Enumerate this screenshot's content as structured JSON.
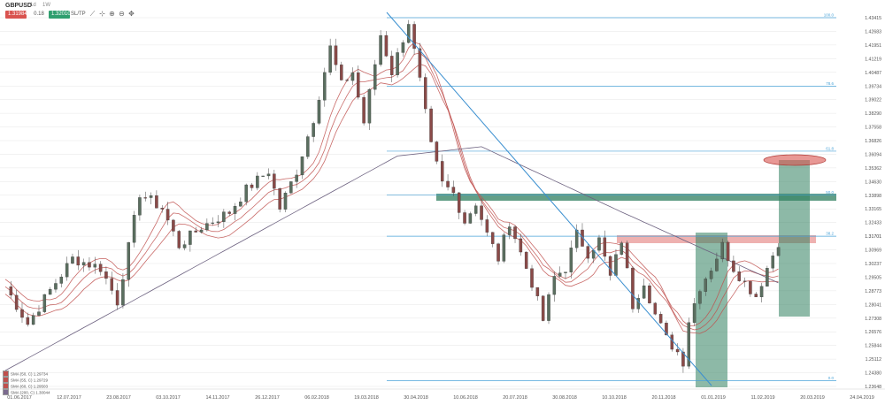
{
  "toolbar": {
    "symbol": "GBPUSD",
    "interval_1": "1d",
    "interval_2": "1W",
    "sell_price": "1.31984",
    "spread": "0.18",
    "buy_price": "1.32010",
    "sl_tp": "SL/TP",
    "icons": [
      "line-tool-icon",
      "crosshair-icon",
      "zoom-in-icon",
      "zoom-out-icon",
      "move-icon"
    ]
  },
  "legend": [
    {
      "label": "SMA (50, C) 1.29734",
      "color": "#c0504d"
    },
    {
      "label": "SMA (55, C) 1.29729",
      "color": "#c0504d"
    },
    {
      "label": "SMA (60, C) 1.29503",
      "color": "#c0504d"
    },
    {
      "label": "SMA (200, C) 1.30044",
      "color": "#7b6a8e"
    }
  ],
  "colors": {
    "bull": "#2f9f6f",
    "bear": "#c0504d",
    "sma_short": "#c0504d",
    "sma_long": "#6d6280",
    "fib": "#4aa3d8",
    "trendline": "#3a8fd0",
    "zone_green": "#2f7f5f",
    "zone_red": "#d9534f",
    "axis_text": "#555555",
    "grid": "#e6e6e6"
  },
  "chart_data": {
    "type": "candlestick",
    "y_ticks": [
      "1.43415",
      "1.42683",
      "1.41951",
      "1.41219",
      "1.40487",
      "1.39734",
      "1.39022",
      "1.38290",
      "1.37558",
      "1.36826",
      "1.36094",
      "1.35362",
      "1.34630",
      "1.33898",
      "1.33165",
      "1.32433",
      "1.31701",
      "1.30969",
      "1.30237",
      "1.29505",
      "1.28773",
      "1.28041",
      "1.27308",
      "1.26576",
      "1.25844",
      "1.25112",
      "1.24380",
      "1.23648"
    ],
    "x_ticks": [
      "01.06.2017",
      "12.07.2017",
      "23.08.2017",
      "03.10.2017",
      "14.11.2017",
      "26.12.2017",
      "06.02.2018",
      "19.03.2018",
      "30.04.2018",
      "10.06.2018",
      "20.07.2018",
      "30.08.2018",
      "10.10.2018",
      "20.11.2018",
      "01.01.2019",
      "11.02.2019",
      "20.03.2019",
      "24.04.2019"
    ],
    "ylim": [
      1.236,
      1.437
    ],
    "fib_levels": [
      {
        "label": "100.0",
        "value": 1.43415
      },
      {
        "label": "78.6",
        "value": 1.39734
      },
      {
        "label": "61.8",
        "value": 1.3626
      },
      {
        "label": "50.0",
        "value": 1.3392
      },
      {
        "label": "38.2",
        "value": 1.31701
      },
      {
        "label": "0.0",
        "value": 1.2396
      }
    ],
    "current_price_label": "1.31701",
    "price_path": [
      [
        0,
        1.29
      ],
      [
        4,
        1.27
      ],
      [
        8,
        1.288
      ],
      [
        12,
        1.305
      ],
      [
        17,
        1.3
      ],
      [
        20,
        1.282
      ],
      [
        24,
        1.34
      ],
      [
        28,
        1.332
      ],
      [
        31,
        1.312
      ],
      [
        35,
        1.322
      ],
      [
        40,
        1.33
      ],
      [
        43,
        1.342
      ],
      [
        47,
        1.352
      ],
      [
        49,
        1.332
      ],
      [
        52,
        1.352
      ],
      [
        55,
        1.38
      ],
      [
        58,
        1.418
      ],
      [
        60,
        1.398
      ],
      [
        62,
        1.405
      ],
      [
        64,
        1.378
      ],
      [
        67,
        1.425
      ],
      [
        69,
        1.405
      ],
      [
        72,
        1.432
      ],
      [
        74,
        1.4
      ],
      [
        76,
        1.365
      ],
      [
        78,
        1.345
      ],
      [
        80,
        1.34
      ],
      [
        82,
        1.325
      ],
      [
        84,
        1.335
      ],
      [
        86,
        1.318
      ],
      [
        88,
        1.305
      ],
      [
        90,
        1.325
      ],
      [
        92,
        1.308
      ],
      [
        94,
        1.292
      ],
      [
        96,
        1.272
      ],
      [
        98,
        1.295
      ],
      [
        100,
        1.3
      ],
      [
        102,
        1.318
      ],
      [
        104,
        1.308
      ],
      [
        106,
        1.315
      ],
      [
        108,
        1.295
      ],
      [
        110,
        1.315
      ],
      [
        111,
        1.298
      ],
      [
        112,
        1.28
      ],
      [
        114,
        1.293
      ],
      [
        116,
        1.275
      ],
      [
        118,
        1.262
      ],
      [
        120,
        1.255
      ],
      [
        121,
        1.25
      ],
      [
        122,
        1.272
      ],
      [
        124,
        1.29
      ],
      [
        126,
        1.3
      ],
      [
        128,
        1.312
      ],
      [
        130,
        1.3
      ],
      [
        132,
        1.292
      ],
      [
        134,
        1.285
      ],
      [
        136,
        1.3
      ],
      [
        138,
        1.314
      ]
    ],
    "series": [
      {
        "name": "SMA (50, C) 1.29734",
        "values": []
      },
      {
        "name": "SMA (55, C) 1.29729",
        "values": []
      },
      {
        "name": "SMA (60, C) 1.29503",
        "values": []
      },
      {
        "name": "SMA (200, C) 1.30044",
        "values": []
      }
    ]
  }
}
